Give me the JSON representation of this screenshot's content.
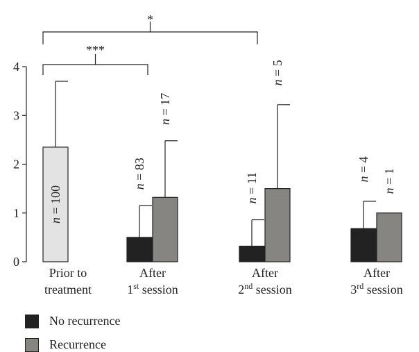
{
  "chart_data": {
    "type": "bar",
    "ylim": [
      0,
      4
    ],
    "yticks": [
      "0",
      "1",
      "2",
      "3",
      "4"
    ],
    "groups": [
      {
        "line1": "Prior to",
        "line2": "treatment",
        "sup": "",
        "line2_after": ""
      },
      {
        "line1": "After",
        "line2": "1",
        "sup": "st",
        "line2_after": " session"
      },
      {
        "line1": "After",
        "line2": "2",
        "sup": "nd",
        "line2_after": " session"
      },
      {
        "line1": "After",
        "line2": "3",
        "sup": "rd",
        "line2_after": " session"
      }
    ],
    "bars": [
      {
        "group": 0,
        "series": "Prior",
        "value": 2.35,
        "error_up": 3.7,
        "n_label": "n = 100",
        "label_inside": true
      },
      {
        "group": 1,
        "series": "No recurrence",
        "value": 0.5,
        "error_up": 1.15,
        "n_label": "n = 83",
        "label_inside": false
      },
      {
        "group": 1,
        "series": "Recurrence",
        "value": 1.32,
        "error_up": 2.48,
        "n_label": "n = 17",
        "label_inside": false
      },
      {
        "group": 2,
        "series": "No recurrence",
        "value": 0.32,
        "error_up": 0.86,
        "n_label": "n = 11",
        "label_inside": false
      },
      {
        "group": 2,
        "series": "Recurrence",
        "value": 1.5,
        "error_up": 3.22,
        "n_label": "n = 5",
        "label_inside": false
      },
      {
        "group": 3,
        "series": "No recurrence",
        "value": 0.68,
        "error_up": 1.24,
        "n_label": "n = 4",
        "label_inside": false
      },
      {
        "group": 3,
        "series": "Recurrence",
        "value": 1.0,
        "error_up": 1.0,
        "n_label": "n = 1",
        "label_inside": false
      }
    ],
    "series_colors": {
      "Prior": "#e3e3e3",
      "No recurrence": "#222222",
      "Recurrence": "#868582"
    },
    "significance": [
      {
        "label": "***",
        "from_bar": 0,
        "to_bar": 1
      },
      {
        "label": "*",
        "from_bar": 0,
        "to_bar": 3
      }
    ]
  },
  "legend": {
    "items": [
      {
        "label": "No recurrence",
        "color": "#222222"
      },
      {
        "label": "Recurrence",
        "color": "#868582"
      }
    ]
  }
}
